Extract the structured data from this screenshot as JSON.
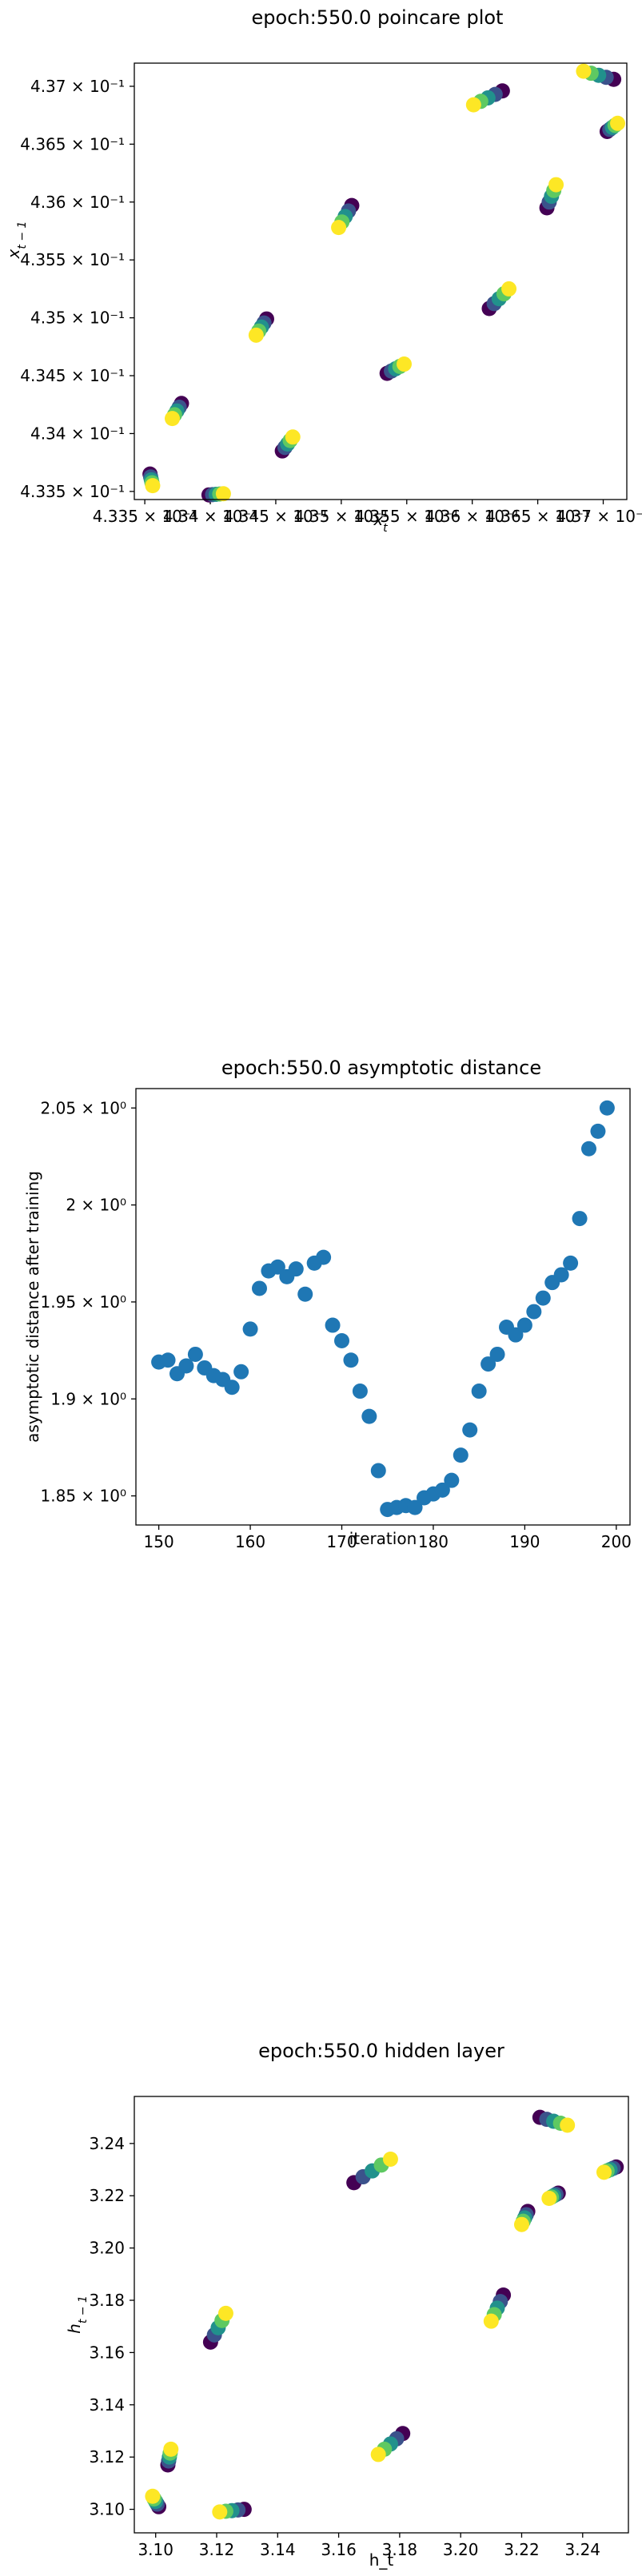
{
  "chart_data": [
    {
      "id": "poincare",
      "type": "scatter",
      "title": "epoch:550.0 poincare plot",
      "xlabel": "x_t",
      "ylabel": "x_{t-1}",
      "xlim": [
        0.43342,
        0.43718
      ],
      "ylim": [
        0.43343,
        0.4372
      ],
      "x_ticks": [
        0.4335,
        0.434,
        0.4345,
        0.435,
        0.4355,
        0.436,
        0.4365,
        0.437
      ],
      "x_tick_labels": [
        "4.335 × 10⁻¹",
        "4.34 × 10⁻¹",
        "4.345 × 10⁻¹",
        "4.35 × 10⁻¹",
        "4.355 × 10⁻¹",
        "4.36 × 10⁻¹",
        "4.365 × 10⁻¹",
        "4.37 × 10⁻¹"
      ],
      "y_ticks": [
        0.4335,
        0.434,
        0.4345,
        0.435,
        0.4355,
        0.436,
        0.4365,
        0.437
      ],
      "y_tick_labels": [
        "4.335 × 10⁻¹",
        "4.34 × 10⁻¹",
        "4.345 × 10⁻¹",
        "4.35 × 10⁻¹",
        "4.355 × 10⁻¹",
        "4.36 × 10⁻¹",
        "4.365 × 10⁻¹",
        "4.37 × 10⁻¹"
      ],
      "colormap": "viridis",
      "clusters": [
        {
          "from": [
            0.43354,
            0.43365
          ],
          "to": [
            0.43356,
            0.43355
          ]
        },
        {
          "from": [
            0.43399,
            0.43347
          ],
          "to": [
            0.4341,
            0.43348
          ]
        },
        {
          "from": [
            0.43378,
            0.43426
          ],
          "to": [
            0.43371,
            0.43413
          ]
        },
        {
          "from": [
            0.43455,
            0.43385
          ],
          "to": [
            0.43463,
            0.43397
          ]
        },
        {
          "from": [
            0.43443,
            0.43499
          ],
          "to": [
            0.43435,
            0.43485
          ]
        },
        {
          "from": [
            0.43535,
            0.43452
          ],
          "to": [
            0.43548,
            0.4346
          ]
        },
        {
          "from": [
            0.43508,
            0.43597
          ],
          "to": [
            0.43498,
            0.43578
          ]
        },
        {
          "from": [
            0.43613,
            0.43508
          ],
          "to": [
            0.43628,
            0.43525
          ]
        },
        {
          "from": [
            0.43623,
            0.43696
          ],
          "to": [
            0.43601,
            0.43684
          ]
        },
        {
          "from": [
            0.43657,
            0.43595
          ],
          "to": [
            0.43664,
            0.43615
          ]
        },
        {
          "from": [
            0.43708,
            0.43706
          ],
          "to": [
            0.43685,
            0.43713
          ]
        },
        {
          "from": [
            0.43703,
            0.43661
          ],
          "to": [
            0.43711,
            0.43668
          ]
        }
      ]
    },
    {
      "id": "asymptotic",
      "type": "scatter",
      "title": "epoch:550.0 asymptotic distance",
      "xlabel": "iteration",
      "ylabel": "asymptotic distance after training",
      "xlim": [
        147.5,
        201.5
      ],
      "ylim": [
        1.835,
        2.06
      ],
      "x_ticks": [
        150,
        160,
        170,
        180,
        190,
        200
      ],
      "x_tick_labels": [
        "150",
        "160",
        "170",
        "180",
        "190",
        "200"
      ],
      "y_ticks": [
        1.85,
        1.9,
        1.95,
        2.0,
        2.05
      ],
      "y_tick_labels": [
        "1.85 × 10⁰",
        "1.9 × 10⁰",
        "1.95 × 10⁰",
        "2 × 10⁰",
        "2.05 × 10⁰"
      ],
      "color": "#1f77b4",
      "x": [
        150,
        151,
        152,
        153,
        154,
        155,
        156,
        157,
        158,
        159,
        160,
        161,
        162,
        163,
        164,
        165,
        166,
        167,
        168,
        169,
        170,
        171,
        172,
        173,
        174,
        175,
        176,
        177,
        178,
        179,
        180,
        181,
        182,
        183,
        184,
        185,
        186,
        187,
        188,
        189,
        190,
        191,
        192,
        193,
        194,
        195,
        196,
        197,
        198,
        199
      ],
      "values": [
        1.919,
        1.92,
        1.913,
        1.917,
        1.923,
        1.916,
        1.912,
        1.91,
        1.906,
        1.914,
        1.936,
        1.957,
        1.966,
        1.968,
        1.963,
        1.967,
        1.954,
        1.97,
        1.973,
        1.938,
        1.93,
        1.92,
        1.904,
        1.891,
        1.863,
        1.843,
        1.844,
        1.845,
        1.844,
        1.849,
        1.851,
        1.853,
        1.858,
        1.871,
        1.884,
        1.904,
        1.918,
        1.923,
        1.937,
        1.933,
        1.938,
        1.945,
        1.952,
        1.96,
        1.964,
        1.97,
        1.993,
        2.029,
        2.038,
        2.05
      ]
    },
    {
      "id": "hidden",
      "type": "scatter",
      "title": "epoch:550.0 hidden layer",
      "xlabel": "h_t",
      "ylabel": "h_{t-1}",
      "xlim": [
        3.093,
        3.255
      ],
      "ylim": [
        3.091,
        3.258
      ],
      "x_ticks": [
        3.1,
        3.12,
        3.14,
        3.16,
        3.18,
        3.2,
        3.22,
        3.24
      ],
      "x_tick_labels": [
        "3.10",
        "3.12",
        "3.14",
        "3.16",
        "3.18",
        "3.20",
        "3.22",
        "3.24"
      ],
      "y_ticks": [
        3.1,
        3.12,
        3.14,
        3.16,
        3.18,
        3.2,
        3.22,
        3.24
      ],
      "y_tick_labels": [
        "3.10",
        "3.12",
        "3.14",
        "3.16",
        "3.18",
        "3.20",
        "3.22",
        "3.24"
      ],
      "colormap": "viridis",
      "clusters": [
        {
          "from": [
            3.101,
            3.101
          ],
          "to": [
            3.099,
            3.105
          ]
        },
        {
          "from": [
            3.129,
            3.1
          ],
          "to": [
            3.121,
            3.099
          ]
        },
        {
          "from": [
            3.104,
            3.117
          ],
          "to": [
            3.105,
            3.123
          ]
        },
        {
          "from": [
            3.181,
            3.129
          ],
          "to": [
            3.173,
            3.121
          ]
        },
        {
          "from": [
            3.118,
            3.164
          ],
          "to": [
            3.123,
            3.175
          ]
        },
        {
          "from": [
            3.214,
            3.182
          ],
          "to": [
            3.21,
            3.172
          ]
        },
        {
          "from": [
            3.165,
            3.225
          ],
          "to": [
            3.177,
            3.234
          ]
        },
        {
          "from": [
            3.222,
            3.214
          ],
          "to": [
            3.22,
            3.209
          ]
        },
        {
          "from": [
            3.232,
            3.221
          ],
          "to": [
            3.229,
            3.219
          ]
        },
        {
          "from": [
            3.226,
            3.25
          ],
          "to": [
            3.235,
            3.247
          ]
        },
        {
          "from": [
            3.251,
            3.231
          ],
          "to": [
            3.247,
            3.229
          ]
        }
      ]
    }
  ]
}
